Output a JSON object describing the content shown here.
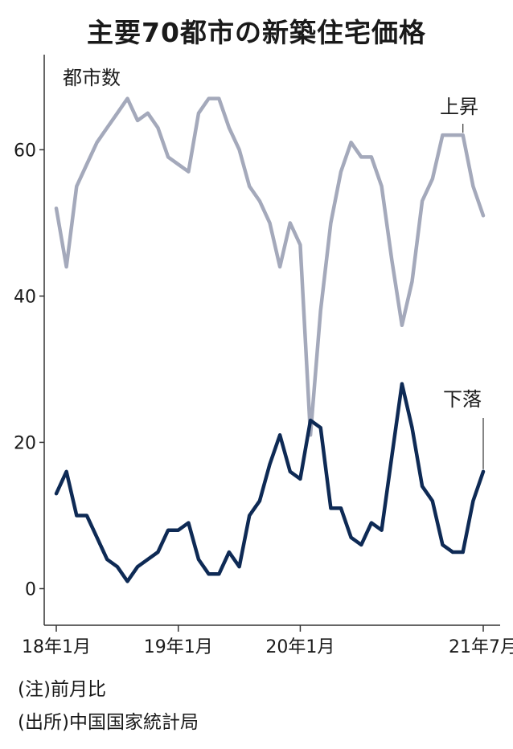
{
  "title": "主要70都市の新築住宅価格",
  "notes": [
    "(注)前月比",
    "(出所)中国国家統計局"
  ],
  "chart_data": {
    "type": "line",
    "title": "主要70都市の新築住宅価格",
    "ylabel": "都市数",
    "xlabel": "",
    "ylim": [
      -5,
      73
    ],
    "yticks": [
      0,
      20,
      40,
      60
    ],
    "xtick_labels": [
      "18年1月",
      "19年1月",
      "20年1月",
      "21年7月"
    ],
    "xtick_index": [
      0,
      12,
      24,
      42
    ],
    "grid": false,
    "series": [
      {
        "name": "上昇",
        "color": "#a4a9bb",
        "values": [
          52,
          44,
          55,
          58,
          61,
          63,
          65,
          67,
          64,
          65,
          63,
          59,
          58,
          57,
          65,
          67,
          67,
          63,
          60,
          55,
          53,
          50,
          44,
          50,
          47,
          21,
          38,
          50,
          57,
          61,
          59,
          59,
          55,
          45,
          36,
          42,
          53,
          56,
          62,
          62,
          62,
          55,
          51
        ]
      },
      {
        "name": "下落",
        "color": "#0e2a55",
        "values": [
          13,
          16,
          10,
          10,
          7,
          4,
          3,
          1,
          3,
          4,
          5,
          8,
          8,
          9,
          4,
          2,
          2,
          5,
          3,
          10,
          12,
          17,
          21,
          16,
          15,
          23,
          22,
          11,
          11,
          7,
          6,
          9,
          8,
          18,
          28,
          22,
          14,
          12,
          6,
          5,
          5,
          12,
          16
        ]
      }
    ]
  }
}
